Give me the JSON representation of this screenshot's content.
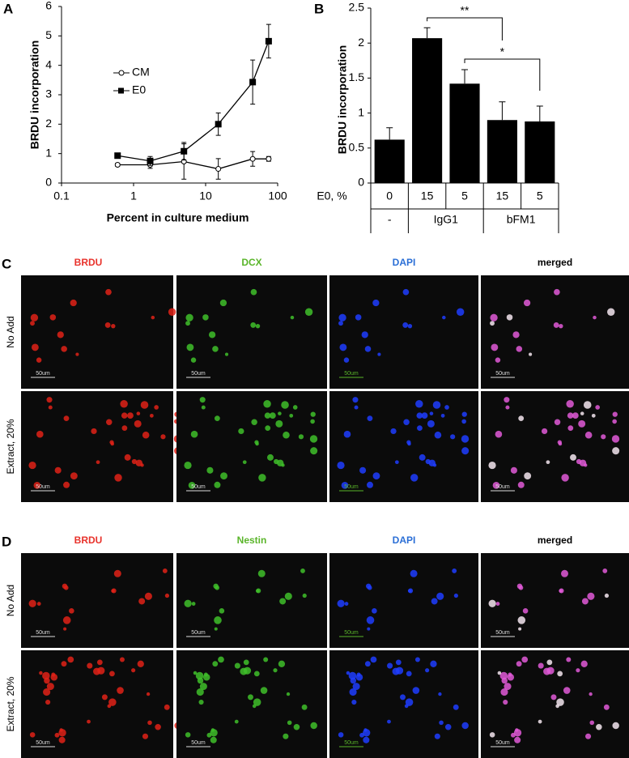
{
  "chart_data": [
    {
      "type": "line",
      "label": "A",
      "log_x": true,
      "y_label": "BRDU incorporation",
      "x_label": "Percent in culture medium",
      "xlim": [
        0.1,
        100
      ],
      "xticks": [
        0.1,
        1,
        10,
        100
      ],
      "ylim": [
        0,
        6
      ],
      "yticks": [
        0,
        1,
        2,
        3,
        4,
        5,
        6
      ],
      "x": [
        0.6,
        1.7,
        5,
        15,
        45,
        75
      ],
      "series": [
        {
          "name": "CM",
          "color": "#000000",
          "marker": "open-circle",
          "values": [
            0.62,
            0.62,
            0.73,
            0.48,
            0.82,
            0.82
          ],
          "errors": [
            0.05,
            0.12,
            0.6,
            0.35,
            0.25,
            0.08
          ]
        },
        {
          "name": "E0",
          "color": "#000000",
          "marker": "square",
          "values": [
            0.93,
            0.75,
            1.08,
            2.0,
            3.43,
            4.82
          ],
          "errors": [
            0.05,
            0.15,
            0.3,
            0.38,
            0.75,
            0.57
          ]
        }
      ]
    },
    {
      "type": "bar",
      "label": "B",
      "color": "#000000",
      "y_label": "BRDU incorporation",
      "category_title": "E0, %",
      "ylim": [
        0,
        2.5
      ],
      "yticks": [
        0,
        0.5,
        1,
        1.5,
        2,
        2.5
      ],
      "groups": [
        {
          "name": "-",
          "categories": [
            "0"
          ]
        },
        {
          "name": "IgG1",
          "categories": [
            "15",
            "5"
          ]
        },
        {
          "name": "bFM1",
          "categories": [
            "15",
            "5"
          ]
        }
      ],
      "values": [
        0.62,
        2.07,
        1.42,
        0.9,
        0.88
      ],
      "errors": [
        0.17,
        0.15,
        0.2,
        0.26,
        0.22
      ],
      "annotations": [
        "**",
        "*"
      ]
    }
  ],
  "micrographs": [
    {
      "label": "C",
      "columns": [
        "BRDU",
        "DCX",
        "DAPI",
        "merged"
      ],
      "rows": [
        "No Add",
        "Extract, 20%"
      ],
      "scale_bar": "50um"
    },
    {
      "label": "D",
      "columns": [
        "BRDU",
        "Nestin",
        "DAPI",
        "merged"
      ],
      "rows": [
        "No Add",
        "Extract, 20%"
      ],
      "scale_bar": "50um"
    }
  ]
}
